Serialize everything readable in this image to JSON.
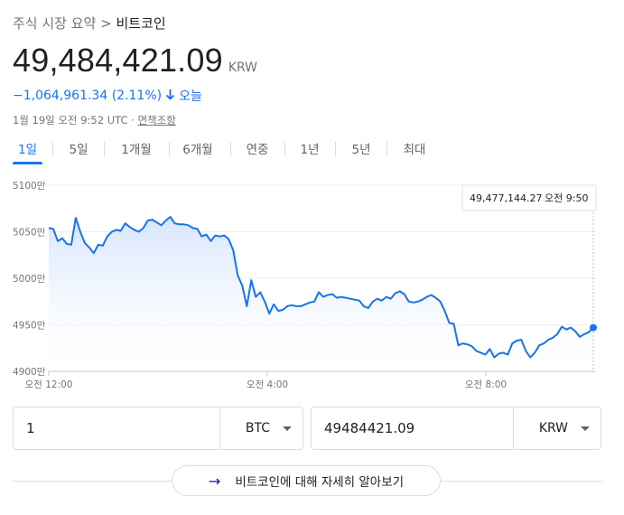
{
  "breadcrumb": {
    "parent": "주식 시장 요약",
    "separator": ">",
    "current": "비트코인"
  },
  "quote": {
    "price": "49,484,421.09",
    "currency": "KRW",
    "change": "−1,064,961.34 (2.11%)",
    "period": "오늘",
    "timestamp": "1월 19일 오전 9:52 UTC",
    "meta_separator": "·",
    "disclaimer": "면책조항"
  },
  "tabs": [
    {
      "label": "1일",
      "active": true
    },
    {
      "label": "5일",
      "active": false
    },
    {
      "label": "1개월",
      "active": false
    },
    {
      "label": "6개월",
      "active": false
    },
    {
      "label": "연중",
      "active": false
    },
    {
      "label": "1년",
      "active": false
    },
    {
      "label": "5년",
      "active": false
    },
    {
      "label": "최대",
      "active": false
    }
  ],
  "chart_data": {
    "type": "area",
    "y_ticks": [
      "5100만",
      "5050만",
      "5000만",
      "4950만",
      "4900만"
    ],
    "y_tick_values": [
      5100,
      5050,
      5000,
      4950,
      4900
    ],
    "ylim": [
      4900,
      5100
    ],
    "x_ticks": [
      "오전 12:00",
      "오전 4:00",
      "오전 8:00"
    ],
    "x_tick_hours": [
      0,
      4,
      8
    ],
    "xlim_hours": [
      0,
      10
    ],
    "values": [
      5054,
      5053,
      5040,
      5043,
      5037,
      5036,
      5065,
      5050,
      5038,
      5033,
      5027,
      5036,
      5035,
      5045,
      5050,
      5052,
      5051,
      5059,
      5055,
      5052,
      5050,
      5054,
      5062,
      5063,
      5060,
      5057,
      5062,
      5066,
      5059,
      5058,
      5058,
      5057,
      5054,
      5053,
      5045,
      5047,
      5040,
      5046,
      5045,
      5046,
      5042,
      5030,
      5003,
      4992,
      4970,
      4998,
      4980,
      4985,
      4975,
      4962,
      4972,
      4965,
      4966,
      4970,
      4971,
      4970,
      4970,
      4972,
      4974,
      4975,
      4985,
      4980,
      4982,
      4983,
      4979,
      4980,
      4979,
      4978,
      4977,
      4976,
      4970,
      4968,
      4975,
      4978,
      4976,
      4980,
      4978,
      4984,
      4986,
      4983,
      4975,
      4974,
      4975,
      4977,
      4980,
      4982,
      4979,
      4975,
      4965,
      4952,
      4951,
      4928,
      4930,
      4929,
      4927,
      4922,
      4920,
      4918,
      4924,
      4915,
      4919,
      4920,
      4918,
      4930,
      4933,
      4934,
      4922,
      4915,
      4920,
      4928,
      4930,
      4934,
      4936,
      4940,
      4948,
      4945,
      4947,
      4943,
      4937,
      4940,
      4942,
      4947
    ],
    "tooltip": {
      "value": "49,477,144.27",
      "time": "오전 9:50"
    },
    "line_color": "#1a73e8",
    "fill_color": "#e8f0fe",
    "grid": true
  },
  "converter": {
    "from": {
      "value": "1",
      "unit": "BTC"
    },
    "to": {
      "value": "49484421.09",
      "unit": "KRW"
    }
  },
  "learn_more": {
    "label": "비트코인에 대해 자세히 알아보기"
  }
}
